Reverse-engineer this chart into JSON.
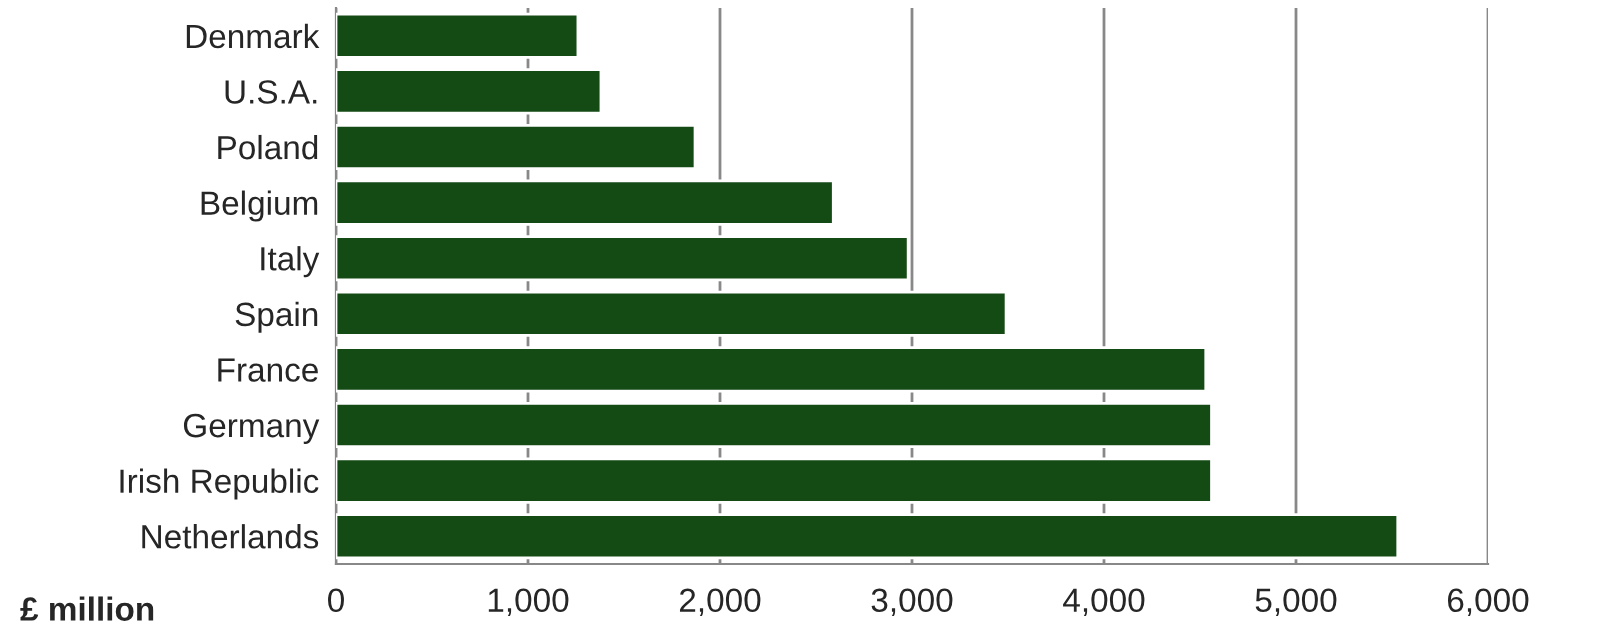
{
  "chart_data": {
    "type": "bar",
    "orientation": "horizontal",
    "xlabel": "£ million",
    "categories": [
      "Denmark",
      "U.S.A.",
      "Poland",
      "Belgium",
      "Italy",
      "Spain",
      "France",
      "Germany",
      "Irish Republic",
      "Netherlands"
    ],
    "values": [
      1260,
      1380,
      1870,
      2590,
      2980,
      3490,
      4530,
      4560,
      4560,
      5530
    ],
    "color": "#144a14",
    "xlim": [
      0,
      6000
    ],
    "xticks": [
      0,
      {
        "value": 1000,
        "label": "1,000"
      },
      {
        "value": 2000,
        "label": "2,000"
      },
      {
        "value": 3000,
        "label": "3,000"
      },
      {
        "value": 4000,
        "label": "4,000"
      },
      {
        "value": 5000,
        "label": "5,000"
      },
      {
        "value": 6000,
        "label": "6,000"
      }
    ],
    "grid": "x",
    "legend": false
  }
}
